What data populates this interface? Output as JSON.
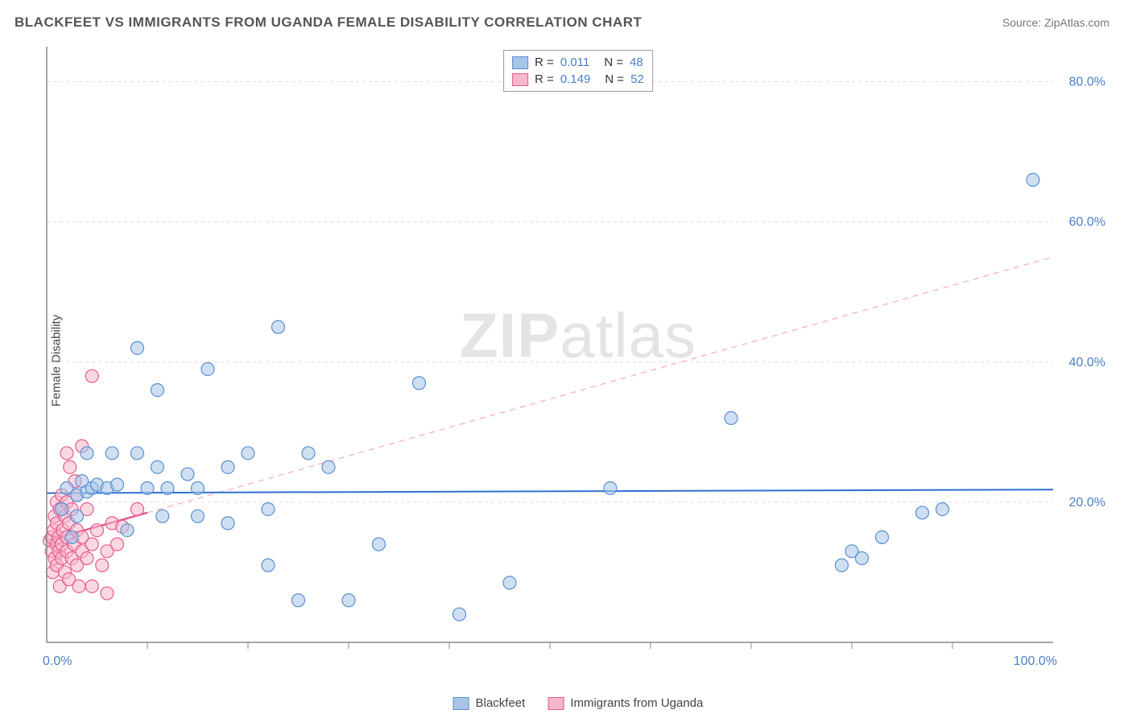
{
  "header": {
    "title": "BLACKFEET VS IMMIGRANTS FROM UGANDA FEMALE DISABILITY CORRELATION CHART",
    "source": "Source: ZipAtlas.com"
  },
  "chart": {
    "type": "scatter",
    "ylabel": "Female Disability",
    "watermark": "ZIPatlas",
    "background_color": "#ffffff",
    "plot_border_color": "#888888",
    "grid_color": "#dddddd",
    "grid_dash": "4,4",
    "xlim": [
      0,
      100
    ],
    "ylim": [
      0,
      85
    ],
    "xtick_step": 10,
    "yticks": [
      20,
      40,
      60,
      80
    ],
    "xlabel_min": "0.0%",
    "xlabel_max": "100.0%",
    "ylabels": [
      "20.0%",
      "40.0%",
      "60.0%",
      "80.0%"
    ],
    "axis_label_color": "#4a7ec8",
    "axis_label_fontsize": 16,
    "marker_radius": 8,
    "marker_opacity": 0.55,
    "series": [
      {
        "name": "Blackfeet",
        "color_fill": "#a8c5e8",
        "color_stroke": "#5a8fd0",
        "R": "0.011",
        "N": "48",
        "points": [
          [
            1.5,
            19
          ],
          [
            2,
            22
          ],
          [
            2.5,
            15
          ],
          [
            3,
            18
          ],
          [
            3,
            21
          ],
          [
            3.5,
            23
          ],
          [
            4,
            21.5
          ],
          [
            4,
            27
          ],
          [
            4.5,
            22
          ],
          [
            5,
            22.5
          ],
          [
            6,
            22
          ],
          [
            6.5,
            27
          ],
          [
            7,
            22.5
          ],
          [
            8,
            16
          ],
          [
            9,
            27
          ],
          [
            9,
            42
          ],
          [
            10,
            22
          ],
          [
            11,
            25
          ],
          [
            11,
            36
          ],
          [
            11.5,
            18
          ],
          [
            12,
            22
          ],
          [
            14,
            24
          ],
          [
            15,
            22
          ],
          [
            15,
            18
          ],
          [
            16,
            39
          ],
          [
            18,
            25
          ],
          [
            18,
            17
          ],
          [
            20,
            27
          ],
          [
            22,
            11
          ],
          [
            22,
            19
          ],
          [
            23,
            45
          ],
          [
            25,
            6
          ],
          [
            26,
            27
          ],
          [
            28,
            25
          ],
          [
            30,
            6
          ],
          [
            33,
            14
          ],
          [
            37,
            37
          ],
          [
            41,
            4
          ],
          [
            46,
            8.5
          ],
          [
            56,
            22
          ],
          [
            68,
            32
          ],
          [
            79,
            11
          ],
          [
            80,
            13
          ],
          [
            81,
            12
          ],
          [
            83,
            15
          ],
          [
            87,
            18.5
          ],
          [
            89,
            19
          ],
          [
            98,
            66
          ]
        ],
        "trendline": {
          "x1": 0,
          "y1": 21.3,
          "x2": 100,
          "y2": 21.8,
          "color": "#2f6fd0",
          "width": 2,
          "dash": "none"
        }
      },
      {
        "name": "Immigrants from Uganda",
        "color_fill": "#f5b8cb",
        "color_stroke": "#e85a8f",
        "R": "0.149",
        "N": "52",
        "points": [
          [
            0.3,
            14.5
          ],
          [
            0.5,
            13
          ],
          [
            0.5,
            15
          ],
          [
            0.6,
            10
          ],
          [
            0.7,
            16
          ],
          [
            0.8,
            12
          ],
          [
            0.8,
            18
          ],
          [
            1,
            14
          ],
          [
            1,
            17
          ],
          [
            1,
            11
          ],
          [
            1,
            20
          ],
          [
            1.2,
            15
          ],
          [
            1.2,
            13
          ],
          [
            1.3,
            8
          ],
          [
            1.3,
            19
          ],
          [
            1.5,
            14
          ],
          [
            1.5,
            21
          ],
          [
            1.5,
            12
          ],
          [
            1.6,
            16
          ],
          [
            1.8,
            10
          ],
          [
            1.8,
            18
          ],
          [
            2,
            13
          ],
          [
            2,
            15
          ],
          [
            2,
            20
          ],
          [
            2,
            27
          ],
          [
            2.2,
            9
          ],
          [
            2.2,
            17
          ],
          [
            2.3,
            25
          ],
          [
            2.5,
            12
          ],
          [
            2.5,
            19
          ],
          [
            2.7,
            14
          ],
          [
            2.8,
            23
          ],
          [
            3,
            11
          ],
          [
            3,
            16
          ],
          [
            3,
            21
          ],
          [
            3.2,
            8
          ],
          [
            3.5,
            15
          ],
          [
            3.5,
            13
          ],
          [
            3.5,
            28
          ],
          [
            4,
            12
          ],
          [
            4,
            19
          ],
          [
            4.5,
            8
          ],
          [
            4.5,
            14
          ],
          [
            4.5,
            38
          ],
          [
            5,
            16
          ],
          [
            5.5,
            11
          ],
          [
            6,
            13
          ],
          [
            6,
            7
          ],
          [
            6.5,
            17
          ],
          [
            7,
            14
          ],
          [
            7.5,
            16.5
          ],
          [
            9,
            19
          ]
        ],
        "trendline_solid": {
          "x1": 0,
          "y1": 14.5,
          "x2": 10,
          "y2": 18.5,
          "color": "#e85a8f",
          "width": 2.5
        },
        "trendline_dashed": {
          "x1": 10,
          "y1": 18.5,
          "x2": 100,
          "y2": 55,
          "color": "#f5b8cb",
          "width": 1.5,
          "dash": "7,6"
        }
      }
    ],
    "legend_bottom": [
      {
        "label": "Blackfeet",
        "fill": "#a8c5e8",
        "stroke": "#5a8fd0"
      },
      {
        "label": "Immigrants from Uganda",
        "fill": "#f5b8cb",
        "stroke": "#e85a8f"
      }
    ]
  }
}
